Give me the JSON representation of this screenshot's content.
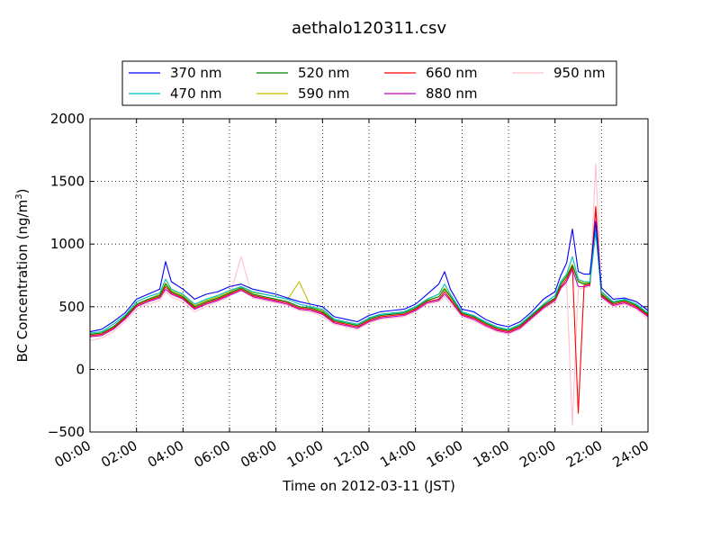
{
  "chart_data": {
    "type": "line",
    "title": "aethalo120311.csv",
    "xlabel": "Time on 2012-03-11 (JST)",
    "ylabel_main": "BC Concentration (ng/m",
    "ylabel_sup": "3",
    "ylabel_close": ")",
    "xlim_hours": [
      0,
      24
    ],
    "ylim": [
      -500,
      2000
    ],
    "grid": true,
    "legend_position": "top-center",
    "x_ticks": [
      0,
      2,
      4,
      6,
      8,
      10,
      12,
      14,
      16,
      18,
      20,
      22,
      24
    ],
    "x_tick_labels": [
      "00:00",
      "02:00",
      "04:00",
      "06:00",
      "08:00",
      "10:00",
      "12:00",
      "14:00",
      "16:00",
      "18:00",
      "20:00",
      "22:00",
      "24:00"
    ],
    "y_ticks": [
      -500,
      0,
      500,
      1000,
      1500,
      2000
    ],
    "y_tick_labels": [
      "−500",
      "0",
      "500",
      "1000",
      "1500",
      "2000"
    ],
    "x_hours": [
      0,
      0.5,
      1,
      1.5,
      2,
      2.5,
      3,
      3.25,
      3.5,
      4,
      4.5,
      5,
      5.5,
      6,
      6.5,
      7,
      7.5,
      8,
      8.5,
      9,
      9.5,
      10,
      10.5,
      11,
      11.5,
      12,
      12.5,
      13,
      13.5,
      14,
      14.5,
      15,
      15.25,
      15.5,
      16,
      16.5,
      17,
      17.5,
      18,
      18.5,
      19,
      19.5,
      20,
      20.25,
      20.5,
      20.75,
      21,
      21.25,
      21.5,
      21.75,
      22,
      22.5,
      23,
      23.5,
      24
    ],
    "series": [
      {
        "name": "370 nm",
        "color": "#0000ff",
        "values": [
          300,
          320,
          380,
          450,
          560,
          600,
          640,
          860,
          700,
          640,
          560,
          600,
          620,
          660,
          680,
          640,
          620,
          600,
          570,
          540,
          520,
          500,
          420,
          400,
          380,
          430,
          460,
          470,
          480,
          520,
          600,
          680,
          780,
          640,
          480,
          460,
          400,
          360,
          340,
          380,
          460,
          560,
          620,
          750,
          850,
          1120,
          780,
          760,
          760,
          1180,
          650,
          560,
          570,
          540,
          470
        ]
      },
      {
        "name": "470 nm",
        "color": "#00bfbf",
        "values": [
          290,
          300,
          360,
          430,
          540,
          580,
          610,
          720,
          640,
          600,
          520,
          560,
          590,
          630,
          660,
          620,
          600,
          580,
          560,
          520,
          500,
          480,
          400,
          380,
          360,
          410,
          440,
          450,
          460,
          500,
          560,
          600,
          680,
          600,
          460,
          430,
          380,
          340,
          320,
          360,
          440,
          520,
          590,
          700,
          760,
          900,
          720,
          700,
          700,
          1120,
          620,
          540,
          560,
          520,
          450
        ]
      },
      {
        "name": "520 nm",
        "color": "#008000",
        "values": [
          280,
          290,
          340,
          420,
          520,
          560,
          590,
          680,
          620,
          580,
          500,
          540,
          570,
          610,
          650,
          600,
          580,
          560,
          540,
          500,
          490,
          460,
          390,
          370,
          350,
          400,
          430,
          440,
          450,
          490,
          550,
          580,
          640,
          580,
          450,
          420,
          370,
          330,
          310,
          350,
          430,
          510,
          570,
          680,
          740,
          830,
          700,
          680,
          690,
          1100,
          600,
          530,
          550,
          510,
          440
        ]
      },
      {
        "name": "590 nm",
        "color": "#bfbf00",
        "values": [
          280,
          290,
          340,
          420,
          520,
          560,
          600,
          690,
          630,
          590,
          510,
          550,
          580,
          620,
          660,
          610,
          600,
          580,
          560,
          700,
          500,
          470,
          400,
          380,
          360,
          410,
          440,
          450,
          460,
          500,
          560,
          600,
          650,
          590,
          450,
          420,
          370,
          330,
          310,
          350,
          430,
          510,
          570,
          690,
          750,
          840,
          710,
          690,
          700,
          1150,
          610,
          540,
          550,
          510,
          440
        ]
      },
      {
        "name": "660 nm",
        "color": "#ff0000",
        "values": [
          270,
          280,
          330,
          410,
          510,
          550,
          580,
          660,
          610,
          570,
          490,
          530,
          560,
          600,
          640,
          590,
          570,
          550,
          530,
          490,
          480,
          450,
          380,
          360,
          340,
          390,
          420,
          430,
          440,
          480,
          540,
          560,
          620,
          560,
          440,
          410,
          360,
          320,
          300,
          340,
          420,
          500,
          560,
          660,
          720,
          820,
          -350,
          670,
          680,
          1300,
          590,
          520,
          540,
          500,
          430
        ]
      },
      {
        "name": "880 nm",
        "color": "#bf00bf",
        "values": [
          260,
          270,
          320,
          400,
          500,
          540,
          570,
          640,
          600,
          560,
          480,
          520,
          550,
          590,
          630,
          580,
          560,
          540,
          520,
          480,
          470,
          440,
          370,
          350,
          330,
          380,
          410,
          420,
          430,
          470,
          530,
          550,
          600,
          550,
          430,
          400,
          350,
          310,
          290,
          330,
          410,
          490,
          550,
          650,
          700,
          800,
          660,
          660,
          670,
          1280,
          580,
          510,
          530,
          490,
          420
        ]
      },
      {
        "name": "950 nm",
        "color": "#ffc0cb",
        "values": [
          230,
          250,
          300,
          380,
          480,
          520,
          550,
          620,
          580,
          540,
          460,
          500,
          540,
          580,
          900,
          570,
          550,
          530,
          510,
          470,
          460,
          420,
          360,
          340,
          320,
          370,
          400,
          410,
          420,
          460,
          520,
          540,
          580,
          530,
          420,
          390,
          340,
          300,
          280,
          320,
          400,
          480,
          540,
          640,
          690,
          -450,
          640,
          650,
          660,
          1640,
          570,
          500,
          520,
          480,
          400
        ]
      }
    ]
  }
}
